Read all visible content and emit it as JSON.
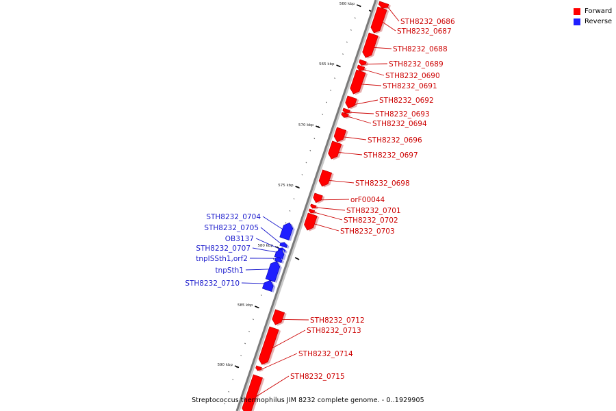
{
  "colors": {
    "forward": "#ff0000",
    "reverse": "#1f1fff",
    "forward_label": "#cc0000",
    "reverse_label": "#1a1acc",
    "axis": "#7a7a7a"
  },
  "legend": [
    {
      "label": "Forward",
      "strand": "forward"
    },
    {
      "label": "Reverse",
      "strand": "reverse"
    }
  ],
  "caption": "Streptococcus thermophilus JIM 8232 complete genome. - 0..1929905",
  "ruler": {
    "unit": "kbp",
    "major_ticks": [
      {
        "label": "560 kbp"
      },
      {
        "label": "565 kbp"
      },
      {
        "label": "570 kbp"
      },
      {
        "label": "575 kbp"
      },
      {
        "label": "580 kbp"
      },
      {
        "label": "585 kbp"
      },
      {
        "label": "590 kbp"
      }
    ]
  },
  "genes": [
    {
      "name": "STH8232_0686",
      "strand": "forward"
    },
    {
      "name": "STH8232_0687",
      "strand": "forward"
    },
    {
      "name": "STH8232_0688",
      "strand": "forward"
    },
    {
      "name": "STH8232_0689",
      "strand": "forward"
    },
    {
      "name": "STH8232_0690",
      "strand": "forward"
    },
    {
      "name": "STH8232_0691",
      "strand": "forward"
    },
    {
      "name": "STH8232_0692",
      "strand": "forward"
    },
    {
      "name": "STH8232_0693",
      "strand": "forward"
    },
    {
      "name": "STH8232_0694",
      "strand": "forward"
    },
    {
      "name": "STH8232_0696",
      "strand": "forward"
    },
    {
      "name": "STH8232_0697",
      "strand": "forward"
    },
    {
      "name": "STH8232_0698",
      "strand": "forward"
    },
    {
      "name": "orF00044",
      "strand": "forward"
    },
    {
      "name": "STH8232_0701",
      "strand": "forward"
    },
    {
      "name": "STH8232_0702",
      "strand": "forward"
    },
    {
      "name": "STH8232_0703",
      "strand": "forward"
    },
    {
      "name": "STH8232_0704",
      "strand": "reverse"
    },
    {
      "name": "STH8232_0705",
      "strand": "reverse"
    },
    {
      "name": "OB3137",
      "strand": "reverse"
    },
    {
      "name": "STH8232_0707",
      "strand": "reverse"
    },
    {
      "name": "tnpISSth1,orf2",
      "strand": "reverse"
    },
    {
      "name": "tnpSth1",
      "strand": "reverse"
    },
    {
      "name": "STH8232_0710",
      "strand": "reverse"
    },
    {
      "name": "STH8232_0712",
      "strand": "forward"
    },
    {
      "name": "STH8232_0713",
      "strand": "forward"
    },
    {
      "name": "STH8232_0714",
      "strand": "forward"
    },
    {
      "name": "STH8232_0715",
      "strand": "forward"
    }
  ]
}
